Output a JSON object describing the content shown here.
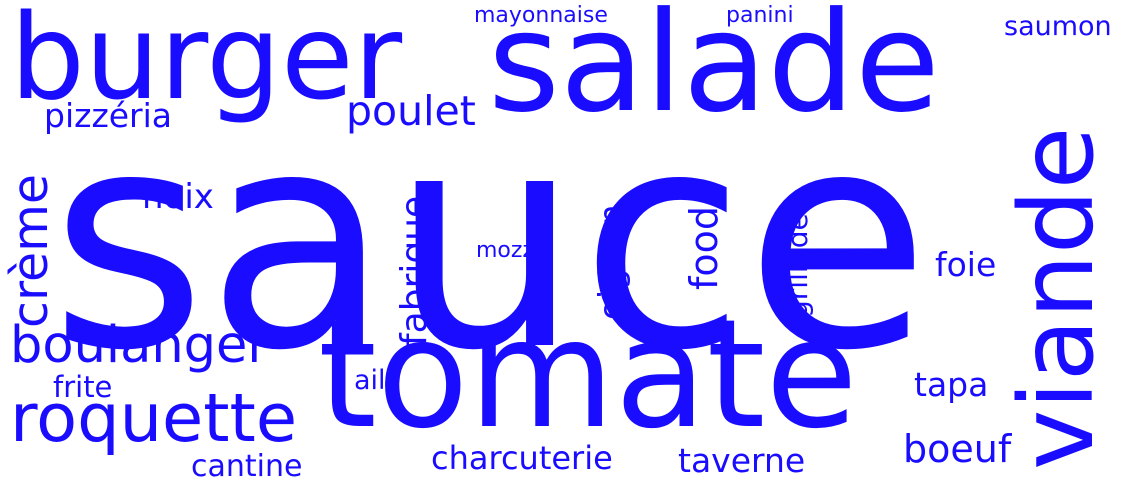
{
  "word_color": "#1a0dff",
  "background": "#ffffff",
  "words": {
    "sauce": "sauce",
    "tomate": "tomate",
    "salade": "salade",
    "burger": "burger",
    "viande": "viande",
    "roquette": "roquette",
    "boulanger": "boulanger",
    "creme": "crème",
    "poulet": "poulet",
    "pizzeria": "pizzéria",
    "mayonnaise": "mayonnaise",
    "panini": "panini",
    "saumon": "saumon",
    "noix": "noix",
    "fabrique": "fabrique",
    "mozza": "mozza",
    "oignon": "oignon",
    "food": "food",
    "grillade": "grillade",
    "foie": "foie",
    "ail": "ail",
    "frite": "frite",
    "tapa": "tapa",
    "boeuf": "boeuf",
    "cantine": "cantine",
    "charcuterie": "charcuterie",
    "taverne": "taverne"
  }
}
